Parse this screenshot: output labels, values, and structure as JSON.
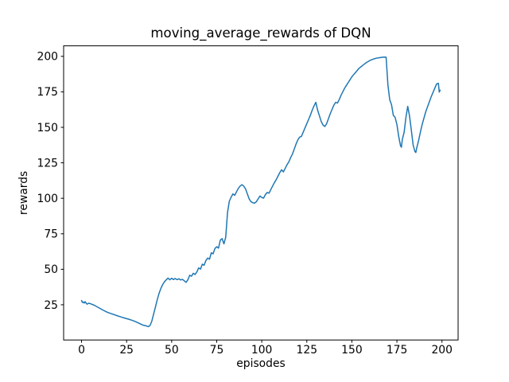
{
  "chart_data": {
    "type": "line",
    "title": "moving_average_rewards of DQN",
    "xlabel": "episodes",
    "ylabel": "rewards",
    "xticks": [
      0,
      25,
      50,
      75,
      100,
      125,
      150,
      175,
      200
    ],
    "yticks": [
      25,
      50,
      75,
      100,
      125,
      150,
      175,
      200
    ],
    "xlim": [
      -9.95,
      208.95
    ],
    "ylim": [
      0.2,
      207.4
    ],
    "grid": false,
    "legend": "none",
    "line_color": "#1f77b4",
    "line_width": 1.5,
    "series_name": "moving average reward",
    "points": [
      [
        0,
        28
      ],
      [
        0.5,
        26.6
      ],
      [
        1,
        27
      ],
      [
        1.5,
        26.2
      ],
      [
        2,
        27.2
      ],
      [
        3,
        25.4
      ],
      [
        4,
        26.1
      ],
      [
        5,
        25.7
      ],
      [
        6,
        25.2
      ],
      [
        7,
        24.7
      ],
      [
        8,
        24
      ],
      [
        10,
        22.6
      ],
      [
        12,
        21.2
      ],
      [
        14,
        19.9
      ],
      [
        16,
        18.9
      ],
      [
        18,
        18.1
      ],
      [
        20,
        17.2
      ],
      [
        22,
        16.4
      ],
      [
        24,
        15.6
      ],
      [
        26,
        14.9
      ],
      [
        28,
        14.1
      ],
      [
        30,
        13.1
      ],
      [
        32,
        11.9
      ],
      [
        34,
        10.7
      ],
      [
        36,
        10.1
      ],
      [
        37,
        9.6
      ],
      [
        38,
        10.4
      ],
      [
        39,
        13.5
      ],
      [
        40,
        18.5
      ],
      [
        41,
        23.5
      ],
      [
        42,
        28.5
      ],
      [
        43,
        33
      ],
      [
        44,
        36.5
      ],
      [
        45,
        39.2
      ],
      [
        46,
        41.2
      ],
      [
        47,
        42.6
      ],
      [
        48,
        43.8
      ],
      [
        49,
        42.6
      ],
      [
        50,
        43.7
      ],
      [
        51,
        42.8
      ],
      [
        52,
        43.5
      ],
      [
        53,
        42.7
      ],
      [
        54,
        43.3
      ],
      [
        55,
        42.5
      ],
      [
        56,
        42.9
      ],
      [
        57,
        41.9
      ],
      [
        58,
        40.8
      ],
      [
        59,
        42.6
      ],
      [
        60,
        45.8
      ],
      [
        61,
        45.1
      ],
      [
        62,
        47.2
      ],
      [
        63,
        46.3
      ],
      [
        64,
        48.2
      ],
      [
        65,
        51
      ],
      [
        66,
        50.1
      ],
      [
        67,
        53.6
      ],
      [
        68,
        52.8
      ],
      [
        69,
        56.2
      ],
      [
        70,
        57.9
      ],
      [
        71,
        57.1
      ],
      [
        72,
        61.6
      ],
      [
        73,
        60.9
      ],
      [
        74,
        64.6
      ],
      [
        75,
        65.9
      ],
      [
        76,
        64.9
      ],
      [
        77,
        70.6
      ],
      [
        78,
        71.6
      ],
      [
        79,
        67.9
      ],
      [
        80,
        72.6
      ],
      [
        81,
        90
      ],
      [
        82,
        98
      ],
      [
        83,
        100.8
      ],
      [
        84,
        103.1
      ],
      [
        85,
        102.1
      ],
      [
        86,
        104.6
      ],
      [
        87,
        107
      ],
      [
        88,
        108.6
      ],
      [
        89,
        109.6
      ],
      [
        90,
        108.6
      ],
      [
        91,
        106.6
      ],
      [
        92,
        103.1
      ],
      [
        93,
        99.6
      ],
      [
        94,
        97.6
      ],
      [
        95,
        96.9
      ],
      [
        96,
        96.6
      ],
      [
        97,
        97.6
      ],
      [
        98,
        99.6
      ],
      [
        99,
        101.6
      ],
      [
        100,
        100.6
      ],
      [
        101,
        100.1
      ],
      [
        102,
        102.6
      ],
      [
        103,
        104.1
      ],
      [
        104,
        103.6
      ],
      [
        105,
        106.1
      ],
      [
        106,
        108.6
      ],
      [
        107,
        111
      ],
      [
        108,
        113.1
      ],
      [
        109,
        115.6
      ],
      [
        110,
        118.1
      ],
      [
        111,
        120.1
      ],
      [
        112,
        118.6
      ],
      [
        113,
        121.1
      ],
      [
        114,
        123.6
      ],
      [
        115,
        125.6
      ],
      [
        116,
        128.6
      ],
      [
        117,
        131.1
      ],
      [
        118,
        134.6
      ],
      [
        119,
        138.1
      ],
      [
        120,
        141.1
      ],
      [
        121,
        143.1
      ],
      [
        122,
        143.6
      ],
      [
        123,
        146.6
      ],
      [
        124,
        149.6
      ],
      [
        125,
        152.6
      ],
      [
        126,
        155.6
      ],
      [
        127,
        158.6
      ],
      [
        128,
        162.1
      ],
      [
        129,
        165.1
      ],
      [
        130,
        167.6
      ],
      [
        131,
        162.1
      ],
      [
        132,
        158.1
      ],
      [
        133,
        154.1
      ],
      [
        134,
        151.6
      ],
      [
        135,
        150.6
      ],
      [
        136,
        152.6
      ],
      [
        137,
        156.1
      ],
      [
        138,
        159.6
      ],
      [
        139,
        162.6
      ],
      [
        140,
        165.6
      ],
      [
        141,
        167.6
      ],
      [
        142,
        167.1
      ],
      [
        143,
        169.6
      ],
      [
        144,
        172.6
      ],
      [
        145,
        175.1
      ],
      [
        146,
        177.6
      ],
      [
        147,
        179.6
      ],
      [
        148,
        181.6
      ],
      [
        149,
        183.6
      ],
      [
        150,
        185.6
      ],
      [
        151,
        187.1
      ],
      [
        152,
        188.6
      ],
      [
        153,
        190.1
      ],
      [
        154,
        191.6
      ],
      [
        155,
        192.6
      ],
      [
        156,
        193.6
      ],
      [
        157,
        194.6
      ],
      [
        158,
        195.6
      ],
      [
        159,
        196.3
      ],
      [
        160,
        197.1
      ],
      [
        161,
        197.6
      ],
      [
        162,
        198.1
      ],
      [
        163,
        198.5
      ],
      [
        164,
        198.8
      ],
      [
        165,
        199
      ],
      [
        166,
        199.2
      ],
      [
        167,
        199.4
      ],
      [
        168,
        199.5
      ],
      [
        169,
        199.4
      ],
      [
        170,
        180
      ],
      [
        171,
        169.5
      ],
      [
        172,
        166
      ],
      [
        173,
        158.5
      ],
      [
        174,
        157
      ],
      [
        175,
        152
      ],
      [
        176,
        143.5
      ],
      [
        177,
        137
      ],
      [
        177.5,
        136
      ],
      [
        178,
        141.5
      ],
      [
        179,
        146.5
      ],
      [
        180,
        157
      ],
      [
        181,
        164.8
      ],
      [
        182,
        158
      ],
      [
        183,
        148
      ],
      [
        184,
        137.5
      ],
      [
        185,
        133
      ],
      [
        185.5,
        132.3
      ],
      [
        186,
        135.5
      ],
      [
        187,
        140.5
      ],
      [
        188,
        146.5
      ],
      [
        189,
        152
      ],
      [
        190,
        156.5
      ],
      [
        191,
        161
      ],
      [
        192,
        164.5
      ],
      [
        193,
        168
      ],
      [
        194,
        171.5
      ],
      [
        195,
        174.5
      ],
      [
        196,
        177.5
      ],
      [
        197,
        180.5
      ],
      [
        198,
        181
      ],
      [
        198.5,
        174.8
      ],
      [
        199,
        176.2
      ]
    ]
  }
}
